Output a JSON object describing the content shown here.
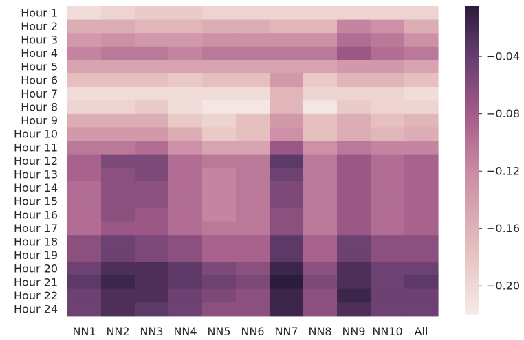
{
  "chart_data": {
    "type": "heatmap",
    "title": "",
    "xlabel": "",
    "ylabel": "",
    "rows": [
      "Hour 1",
      "Hour 2",
      "Hour 3",
      "Hour 4",
      "Hour 5",
      "Hour 6",
      "Hour 7",
      "Hour 8",
      "Hour 9",
      "Hour 10",
      "Hour 11",
      "Hour 12",
      "Hour 13",
      "Hour 14",
      "Hour 15",
      "Hour 16",
      "Hour 17",
      "Hour 18",
      "Hour 19",
      "Hour 20",
      "Hour 21",
      "Hour 22",
      "Hour 24"
    ],
    "columns": [
      "NN1",
      "NN2",
      "NN3",
      "NN4",
      "NN5",
      "NN6",
      "NN7",
      "NN8",
      "NN9",
      "NN10",
      "All"
    ],
    "values": [
      [
        -0.02,
        -0.03,
        -0.04,
        -0.04,
        -0.03,
        -0.03,
        -0.03,
        -0.03,
        -0.03,
        -0.03,
        -0.03
      ],
      [
        -0.07,
        -0.07,
        -0.06,
        -0.06,
        -0.07,
        -0.07,
        -0.06,
        -0.06,
        -0.11,
        -0.1,
        -0.07
      ],
      [
        -0.09,
        -0.1,
        -0.09,
        -0.09,
        -0.1,
        -0.1,
        -0.1,
        -0.1,
        -0.13,
        -0.12,
        -0.1
      ],
      [
        -0.11,
        -0.12,
        -0.12,
        -0.11,
        -0.12,
        -0.12,
        -0.12,
        -0.12,
        -0.15,
        -0.13,
        -0.12
      ],
      [
        -0.08,
        -0.08,
        -0.08,
        -0.08,
        -0.08,
        -0.08,
        -0.08,
        -0.08,
        -0.09,
        -0.09,
        -0.08
      ],
      [
        -0.05,
        -0.05,
        -0.05,
        -0.04,
        -0.05,
        -0.05,
        -0.09,
        -0.04,
        -0.06,
        -0.06,
        -0.05
      ],
      [
        -0.02,
        -0.02,
        -0.02,
        -0.02,
        -0.02,
        -0.02,
        -0.06,
        -0.03,
        -0.03,
        -0.03,
        -0.02
      ],
      [
        -0.03,
        -0.03,
        -0.04,
        -0.02,
        -0.01,
        -0.01,
        -0.06,
        -0.01,
        -0.04,
        -0.03,
        -0.03
      ],
      [
        -0.07,
        -0.07,
        -0.07,
        -0.04,
        -0.03,
        -0.05,
        -0.09,
        -0.05,
        -0.07,
        -0.05,
        -0.06
      ],
      [
        -0.09,
        -0.09,
        -0.09,
        -0.07,
        -0.04,
        -0.05,
        -0.1,
        -0.05,
        -0.07,
        -0.06,
        -0.07
      ],
      [
        -0.12,
        -0.12,
        -0.13,
        -0.1,
        -0.08,
        -0.08,
        -0.15,
        -0.1,
        -0.12,
        -0.11,
        -0.11
      ],
      [
        -0.14,
        -0.17,
        -0.17,
        -0.13,
        -0.12,
        -0.12,
        -0.19,
        -0.12,
        -0.15,
        -0.13,
        -0.14
      ],
      [
        -0.14,
        -0.16,
        -0.17,
        -0.13,
        -0.11,
        -0.12,
        -0.18,
        -0.12,
        -0.15,
        -0.13,
        -0.14
      ],
      [
        -0.13,
        -0.16,
        -0.16,
        -0.13,
        -0.11,
        -0.12,
        -0.17,
        -0.12,
        -0.15,
        -0.13,
        -0.14
      ],
      [
        -0.13,
        -0.16,
        -0.16,
        -0.13,
        -0.11,
        -0.12,
        -0.17,
        -0.12,
        -0.15,
        -0.13,
        -0.14
      ],
      [
        -0.13,
        -0.16,
        -0.15,
        -0.13,
        -0.11,
        -0.12,
        -0.16,
        -0.12,
        -0.15,
        -0.13,
        -0.14
      ],
      [
        -0.13,
        -0.15,
        -0.15,
        -0.13,
        -0.12,
        -0.12,
        -0.16,
        -0.12,
        -0.15,
        -0.13,
        -0.14
      ],
      [
        -0.16,
        -0.18,
        -0.17,
        -0.16,
        -0.14,
        -0.14,
        -0.19,
        -0.14,
        -0.18,
        -0.16,
        -0.16
      ],
      [
        -0.16,
        -0.18,
        -0.17,
        -0.16,
        -0.14,
        -0.14,
        -0.19,
        -0.14,
        -0.18,
        -0.16,
        -0.16
      ],
      [
        -0.18,
        -0.2,
        -0.2,
        -0.19,
        -0.17,
        -0.16,
        -0.21,
        -0.16,
        -0.2,
        -0.18,
        -0.18
      ],
      [
        -0.19,
        -0.21,
        -0.2,
        -0.19,
        -0.18,
        -0.17,
        -0.22,
        -0.17,
        -0.2,
        -0.18,
        -0.19
      ],
      [
        -0.18,
        -0.2,
        -0.2,
        -0.18,
        -0.17,
        -0.16,
        -0.21,
        -0.16,
        -0.21,
        -0.18,
        -0.18
      ],
      [
        -0.18,
        -0.2,
        -0.19,
        -0.18,
        -0.16,
        -0.16,
        -0.21,
        -0.16,
        -0.2,
        -0.18,
        -0.18
      ]
    ],
    "colorbar": {
      "range": [
        -0.22,
        -0.005
      ],
      "ticks": [
        -0.04,
        -0.08,
        -0.12,
        -0.16,
        -0.2
      ],
      "tick_labels": [
        "−0.04",
        "−0.08",
        "−0.12",
        "−0.16",
        "−0.20"
      ],
      "colormap_light": "#f6ece8",
      "colormap_mid": "#b5628f",
      "colormap_dark": "#2c1c3c"
    },
    "grid": false
  }
}
